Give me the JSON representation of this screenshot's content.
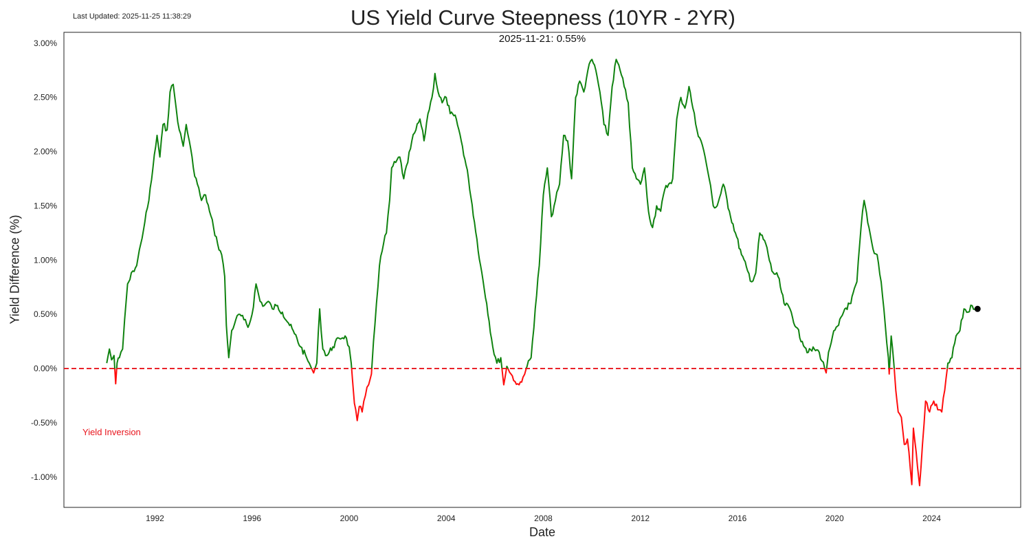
{
  "header": {
    "last_updated": "Last Updated: 2025-11-25 11:38:29"
  },
  "chart_data": {
    "type": "line",
    "title": "US Yield Curve Steepness (10YR - 2YR)",
    "xlabel": "Date",
    "ylabel": "Yield Difference (%)",
    "x_ticks": [
      "1992",
      "1996",
      "2000",
      "2004",
      "2008",
      "2012",
      "2016",
      "2020",
      "2024"
    ],
    "y_ticks": [
      "3.00%",
      "2.50%",
      "2.00%",
      "1.50%",
      "1.00%",
      "0.50%",
      "0.00%",
      "-0.50%",
      "-1.00%"
    ],
    "y_tick_values": [
      3.0,
      2.5,
      2.0,
      1.5,
      1.0,
      0.5,
      0.0,
      -0.5,
      -1.0
    ],
    "x_range": [
      "1988-04-01",
      "2027-09-01"
    ],
    "y_range": [
      -1.28,
      3.1
    ],
    "reference_line": {
      "y": 0.0,
      "style": "dashed",
      "color": "#e8141c"
    },
    "last_point": {
      "date": "2025-11-21",
      "value": 0.55
    },
    "annotation": "2025-11-21: 0.55%",
    "inversion_label": "Yield Inversion",
    "colors": {
      "positive": "#0f820f",
      "negative": "#ff0d0d",
      "last_point": "#000000"
    },
    "grid": false,
    "series": [
      {
        "points": [
          [
            "1990-01-05",
            0.05
          ],
          [
            "1990-02-15",
            0.18
          ],
          [
            "1990-03-20",
            0.08
          ],
          [
            "1990-04-25",
            0.12
          ],
          [
            "1990-05-20",
            -0.14
          ],
          [
            "1990-06-10",
            0.05
          ],
          [
            "1990-07-15",
            0.1
          ],
          [
            "1990-09-01",
            0.18
          ],
          [
            "1990-10-01",
            0.45
          ],
          [
            "1990-11-15",
            0.78
          ],
          [
            "1990-12-20",
            0.82
          ],
          [
            "1991-02-01",
            0.9
          ],
          [
            "1991-04-01",
            0.95
          ],
          [
            "1991-06-01",
            1.15
          ],
          [
            "1991-08-01",
            1.35
          ],
          [
            "1991-10-01",
            1.55
          ],
          [
            "1991-12-01",
            1.85
          ],
          [
            "1992-02-01",
            2.15
          ],
          [
            "1992-03-15",
            1.95
          ],
          [
            "1992-05-01",
            2.25
          ],
          [
            "1992-07-01",
            2.2
          ],
          [
            "1992-08-15",
            2.55
          ],
          [
            "1992-10-01",
            2.62
          ],
          [
            "1992-11-15",
            2.4
          ],
          [
            "1993-01-01",
            2.2
          ],
          [
            "1993-03-01",
            2.05
          ],
          [
            "1993-04-15",
            2.25
          ],
          [
            "1993-06-01",
            2.1
          ],
          [
            "1993-08-01",
            1.85
          ],
          [
            "1993-10-01",
            1.7
          ],
          [
            "1993-12-01",
            1.55
          ],
          [
            "1994-02-01",
            1.6
          ],
          [
            "1994-04-01",
            1.45
          ],
          [
            "1994-06-01",
            1.3
          ],
          [
            "1994-08-01",
            1.15
          ],
          [
            "1994-10-01",
            1.05
          ],
          [
            "1994-11-15",
            0.85
          ],
          [
            "1994-12-10",
            0.4
          ],
          [
            "1995-01-15",
            0.1
          ],
          [
            "1995-03-01",
            0.35
          ],
          [
            "1995-05-01",
            0.45
          ],
          [
            "1995-07-01",
            0.5
          ],
          [
            "1995-09-01",
            0.45
          ],
          [
            "1995-11-01",
            0.38
          ],
          [
            "1996-01-01",
            0.5
          ],
          [
            "1996-03-01",
            0.78
          ],
          [
            "1996-05-01",
            0.62
          ],
          [
            "1996-07-01",
            0.58
          ],
          [
            "1996-09-01",
            0.62
          ],
          [
            "1996-11-01",
            0.55
          ],
          [
            "1997-01-01",
            0.58
          ],
          [
            "1997-04-01",
            0.52
          ],
          [
            "1997-07-01",
            0.42
          ],
          [
            "1997-10-01",
            0.32
          ],
          [
            "1998-01-01",
            0.2
          ],
          [
            "1998-04-01",
            0.1
          ],
          [
            "1998-06-01",
            0.02
          ],
          [
            "1998-07-15",
            -0.04
          ],
          [
            "1998-09-01",
            0.05
          ],
          [
            "1998-10-15",
            0.55
          ],
          [
            "1998-12-01",
            0.18
          ],
          [
            "1999-02-01",
            0.12
          ],
          [
            "1999-05-01",
            0.2
          ],
          [
            "1999-08-01",
            0.28
          ],
          [
            "1999-11-01",
            0.3
          ],
          [
            "2000-01-01",
            0.2
          ],
          [
            "2000-02-01",
            0.05
          ],
          [
            "2000-02-20",
            -0.1
          ],
          [
            "2000-03-20",
            -0.32
          ],
          [
            "2000-05-01",
            -0.48
          ],
          [
            "2000-06-01",
            -0.35
          ],
          [
            "2000-07-15",
            -0.4
          ],
          [
            "2000-09-01",
            -0.25
          ],
          [
            "2000-10-20",
            -0.15
          ],
          [
            "2000-12-01",
            -0.05
          ],
          [
            "2001-01-01",
            0.25
          ],
          [
            "2001-02-15",
            0.6
          ],
          [
            "2001-04-01",
            0.95
          ],
          [
            "2001-06-01",
            1.15
          ],
          [
            "2001-07-15",
            1.25
          ],
          [
            "2001-09-01",
            1.55
          ],
          [
            "2001-10-01",
            1.85
          ],
          [
            "2001-12-01",
            1.9
          ],
          [
            "2002-02-01",
            1.95
          ],
          [
            "2002-04-01",
            1.75
          ],
          [
            "2002-06-01",
            1.9
          ],
          [
            "2002-08-01",
            2.1
          ],
          [
            "2002-10-01",
            2.2
          ],
          [
            "2002-12-01",
            2.3
          ],
          [
            "2003-02-01",
            2.1
          ],
          [
            "2003-04-01",
            2.35
          ],
          [
            "2003-06-01",
            2.5
          ],
          [
            "2003-07-15",
            2.72
          ],
          [
            "2003-09-01",
            2.55
          ],
          [
            "2003-11-01",
            2.45
          ],
          [
            "2004-01-01",
            2.5
          ],
          [
            "2004-03-01",
            2.35
          ],
          [
            "2004-06-01",
            2.3
          ],
          [
            "2004-09-01",
            2.05
          ],
          [
            "2004-12-01",
            1.75
          ],
          [
            "2005-03-01",
            1.35
          ],
          [
            "2005-06-01",
            0.95
          ],
          [
            "2005-09-01",
            0.6
          ],
          [
            "2005-12-01",
            0.2
          ],
          [
            "2006-02-01",
            0.05
          ],
          [
            "2006-04-01",
            0.1
          ],
          [
            "2006-05-15",
            -0.15
          ],
          [
            "2006-07-01",
            0.02
          ],
          [
            "2006-09-01",
            -0.05
          ],
          [
            "2006-11-01",
            -0.12
          ],
          [
            "2007-01-01",
            -0.15
          ],
          [
            "2007-03-01",
            -0.08
          ],
          [
            "2007-05-01",
            0.02
          ],
          [
            "2007-07-01",
            0.1
          ],
          [
            "2007-09-01",
            0.55
          ],
          [
            "2007-11-01",
            0.95
          ],
          [
            "2008-01-01",
            1.6
          ],
          [
            "2008-03-01",
            1.85
          ],
          [
            "2008-05-01",
            1.4
          ],
          [
            "2008-07-01",
            1.55
          ],
          [
            "2008-09-01",
            1.7
          ],
          [
            "2008-11-01",
            2.15
          ],
          [
            "2009-01-01",
            2.1
          ],
          [
            "2009-03-01",
            1.75
          ],
          [
            "2009-05-01",
            2.5
          ],
          [
            "2009-07-01",
            2.65
          ],
          [
            "2009-09-01",
            2.55
          ],
          [
            "2009-11-01",
            2.75
          ],
          [
            "2010-01-01",
            2.85
          ],
          [
            "2010-03-01",
            2.75
          ],
          [
            "2010-05-01",
            2.55
          ],
          [
            "2010-07-01",
            2.25
          ],
          [
            "2010-09-01",
            2.15
          ],
          [
            "2010-11-01",
            2.6
          ],
          [
            "2011-01-01",
            2.85
          ],
          [
            "2011-03-01",
            2.75
          ],
          [
            "2011-05-01",
            2.6
          ],
          [
            "2011-07-01",
            2.45
          ],
          [
            "2011-09-01",
            1.85
          ],
          [
            "2011-11-01",
            1.75
          ],
          [
            "2012-01-01",
            1.7
          ],
          [
            "2012-03-01",
            1.85
          ],
          [
            "2012-05-01",
            1.45
          ],
          [
            "2012-07-01",
            1.3
          ],
          [
            "2012-09-01",
            1.5
          ],
          [
            "2012-11-01",
            1.45
          ],
          [
            "2013-01-01",
            1.65
          ],
          [
            "2013-03-01",
            1.7
          ],
          [
            "2013-05-01",
            1.75
          ],
          [
            "2013-07-01",
            2.3
          ],
          [
            "2013-09-01",
            2.5
          ],
          [
            "2013-11-01",
            2.4
          ],
          [
            "2014-01-01",
            2.6
          ],
          [
            "2014-03-01",
            2.4
          ],
          [
            "2014-05-01",
            2.2
          ],
          [
            "2014-07-01",
            2.1
          ],
          [
            "2014-09-01",
            1.95
          ],
          [
            "2014-11-01",
            1.75
          ],
          [
            "2015-01-01",
            1.5
          ],
          [
            "2015-03-01",
            1.5
          ],
          [
            "2015-06-01",
            1.7
          ],
          [
            "2015-09-01",
            1.45
          ],
          [
            "2015-12-01",
            1.25
          ],
          [
            "2016-03-01",
            1.05
          ],
          [
            "2016-06-01",
            0.9
          ],
          [
            "2016-08-01",
            0.8
          ],
          [
            "2016-10-01",
            0.88
          ],
          [
            "2016-12-01",
            1.25
          ],
          [
            "2017-03-01",
            1.15
          ],
          [
            "2017-06-01",
            0.9
          ],
          [
            "2017-09-01",
            0.85
          ],
          [
            "2017-12-01",
            0.6
          ],
          [
            "2018-03-01",
            0.55
          ],
          [
            "2018-06-01",
            0.38
          ],
          [
            "2018-09-01",
            0.25
          ],
          [
            "2018-12-01",
            0.15
          ],
          [
            "2019-03-01",
            0.18
          ],
          [
            "2019-05-15",
            0.15
          ],
          [
            "2019-08-27",
            -0.04
          ],
          [
            "2019-10-01",
            0.15
          ],
          [
            "2019-12-01",
            0.3
          ],
          [
            "2020-03-01",
            0.4
          ],
          [
            "2020-06-01",
            0.55
          ],
          [
            "2020-09-01",
            0.6
          ],
          [
            "2020-12-01",
            0.8
          ],
          [
            "2021-02-01",
            1.3
          ],
          [
            "2021-03-20",
            1.55
          ],
          [
            "2021-06-01",
            1.3
          ],
          [
            "2021-08-01",
            1.1
          ],
          [
            "2021-10-01",
            1.05
          ],
          [
            "2021-12-01",
            0.8
          ],
          [
            "2022-02-01",
            0.4
          ],
          [
            "2022-03-20",
            0.1
          ],
          [
            "2022-04-01",
            -0.05
          ],
          [
            "2022-05-01",
            0.3
          ],
          [
            "2022-06-10",
            0.05
          ],
          [
            "2022-07-10",
            -0.2
          ],
          [
            "2022-08-15",
            -0.4
          ],
          [
            "2022-10-01",
            -0.45
          ],
          [
            "2022-11-15",
            -0.7
          ],
          [
            "2023-01-01",
            -0.65
          ],
          [
            "2023-03-08",
            -1.07
          ],
          [
            "2023-04-01",
            -0.55
          ],
          [
            "2023-06-01",
            -0.9
          ],
          [
            "2023-07-03",
            -1.08
          ],
          [
            "2023-08-15",
            -0.7
          ],
          [
            "2023-10-01",
            -0.3
          ],
          [
            "2023-12-01",
            -0.4
          ],
          [
            "2024-02-01",
            -0.3
          ],
          [
            "2024-04-01",
            -0.38
          ],
          [
            "2024-06-01",
            -0.4
          ],
          [
            "2024-07-15",
            -0.2
          ],
          [
            "2024-09-01",
            0.05
          ],
          [
            "2024-11-01",
            0.1
          ],
          [
            "2025-01-01",
            0.3
          ],
          [
            "2025-03-01",
            0.35
          ],
          [
            "2025-05-01",
            0.55
          ],
          [
            "2025-07-01",
            0.52
          ],
          [
            "2025-09-01",
            0.58
          ],
          [
            "2025-11-21",
            0.55
          ]
        ]
      }
    ]
  }
}
